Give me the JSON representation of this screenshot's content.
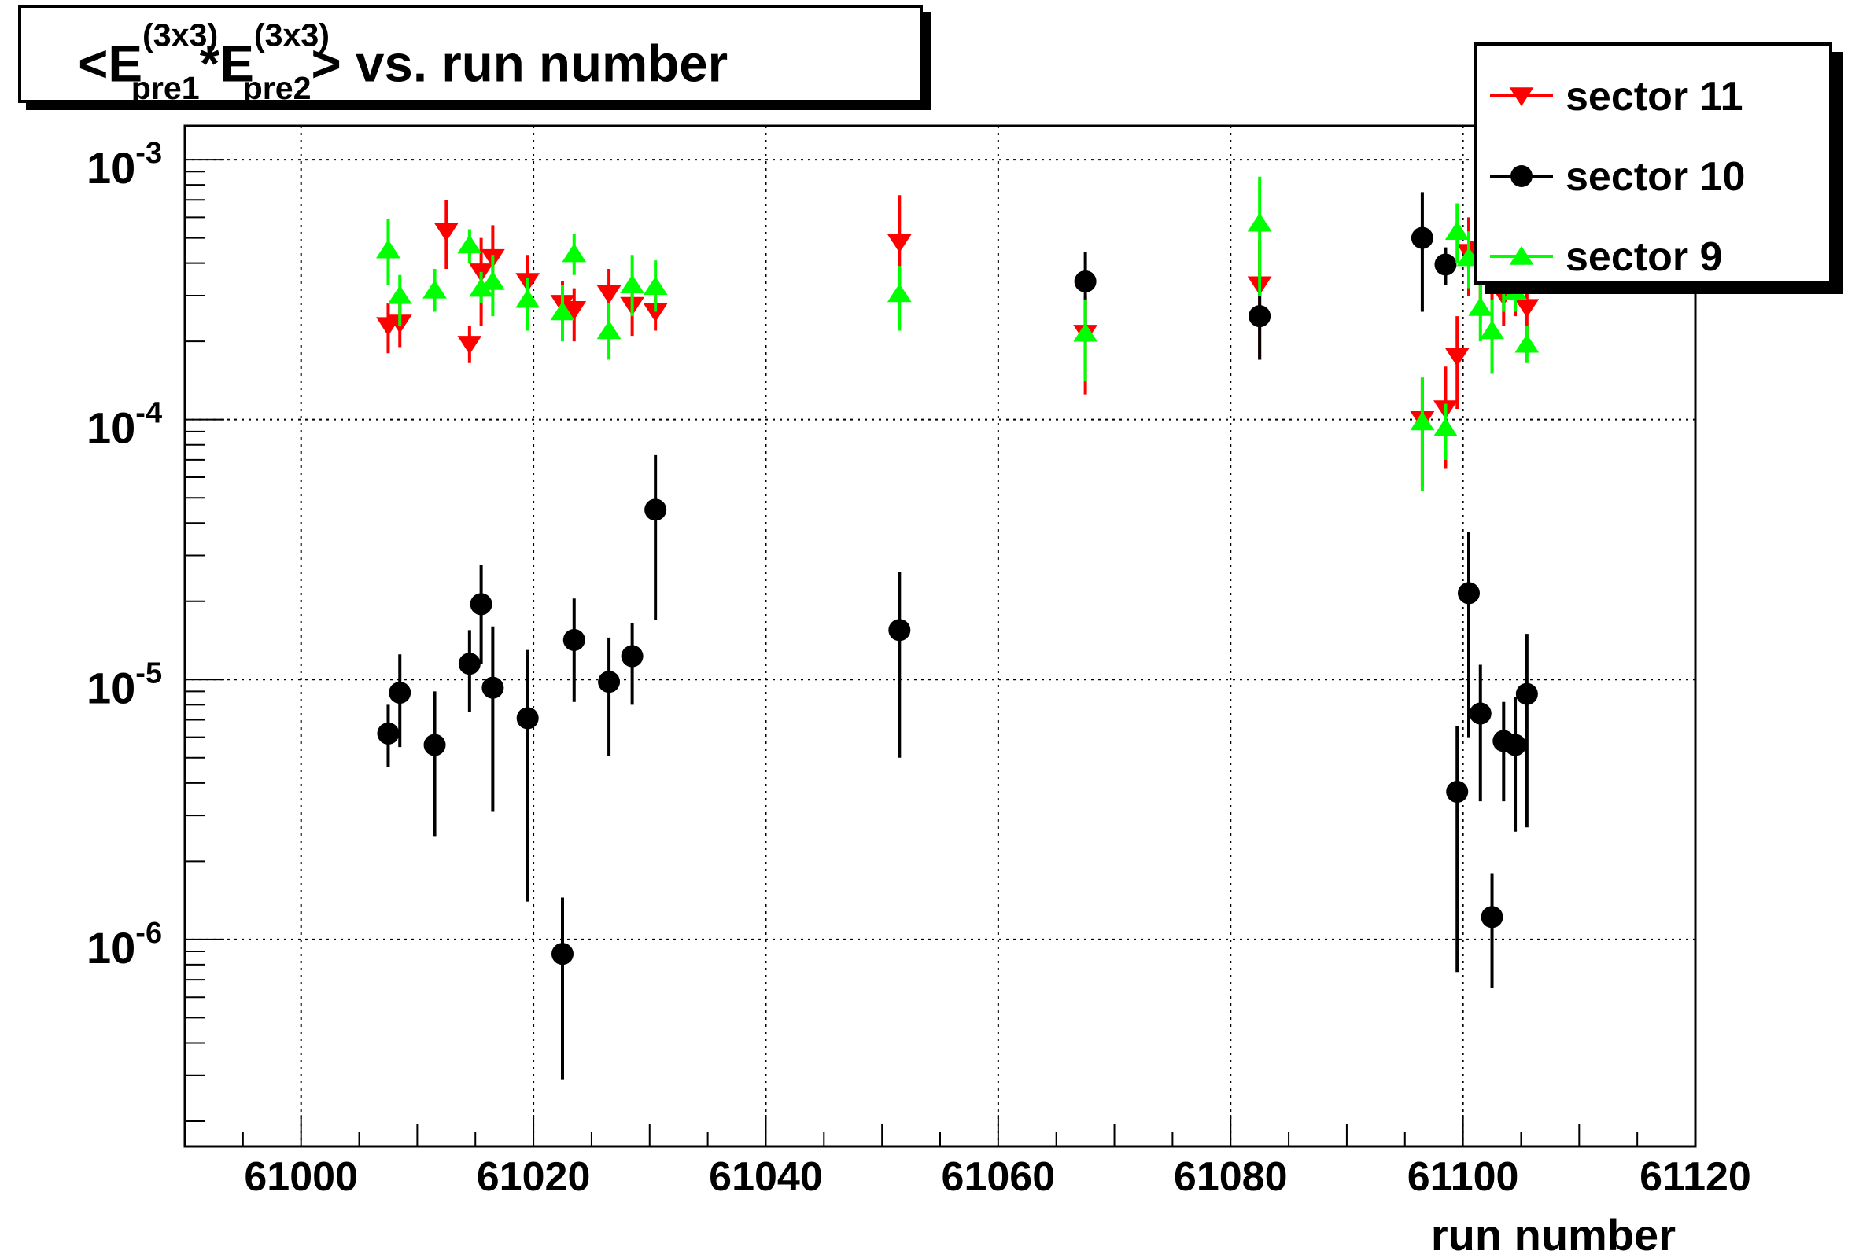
{
  "title": {
    "open": "<E",
    "sup1": "(3x3)",
    "sub1": "pre1",
    "mult": "*E",
    "sup2": "(3x3)",
    "sub2": "pre2",
    "close": "> vs. run number"
  },
  "legend": {
    "position": "top-right",
    "items": [
      {
        "label": "sector 11",
        "color": "#ff0000",
        "marker": "triangle-down"
      },
      {
        "label": "sector 10",
        "color": "#000000",
        "marker": "circle"
      },
      {
        "label": "sector 9",
        "color": "#00ff00",
        "marker": "triangle-up"
      }
    ]
  },
  "chart_data": {
    "type": "scatter",
    "title": "<E(3x3)pre1*E(3x3)pre2> vs. run number",
    "xlabel": "run number",
    "ylabel": "",
    "xlim": [
      60990,
      61120
    ],
    "ylim": [
      1.6e-07,
      0.00135
    ],
    "yscale": "log",
    "grid": true,
    "xticks": [
      61000,
      61020,
      61040,
      61060,
      61080,
      61100,
      61120
    ],
    "xtick_labels": [
      "61000",
      "61020",
      "61040",
      "61060",
      "61080",
      "61100",
      "61120"
    ],
    "yticks": [
      {
        "value": 0.001,
        "base": "10",
        "exp": "-3"
      },
      {
        "value": 0.0001,
        "base": "10",
        "exp": "-4"
      },
      {
        "value": 1e-05,
        "base": "10",
        "exp": "-5"
      },
      {
        "value": 1e-06,
        "base": "10",
        "exp": "-6"
      }
    ],
    "series": [
      {
        "name": "sector 11",
        "color": "#ff0000",
        "marker": "triangle-down",
        "points": [
          {
            "x": 61007.5,
            "y": 0.00023,
            "lo": 0.00018,
            "hi": 0.00028
          },
          {
            "x": 61008.5,
            "y": 0.000235,
            "lo": 0.00019,
            "hi": 0.00029
          },
          {
            "x": 61012.5,
            "y": 0.00053,
            "lo": 0.00038,
            "hi": 0.0007
          },
          {
            "x": 61014.5,
            "y": 0.000195,
            "lo": 0.000165,
            "hi": 0.00023
          },
          {
            "x": 61015.5,
            "y": 0.00037,
            "lo": 0.00023,
            "hi": 0.0005
          },
          {
            "x": 61016.5,
            "y": 0.00042,
            "lo": 0.0003,
            "hi": 0.00056
          },
          {
            "x": 61019.5,
            "y": 0.00034,
            "lo": 0.00026,
            "hi": 0.00043
          },
          {
            "x": 61022.5,
            "y": 0.00028,
            "lo": 0.00022,
            "hi": 0.00034
          },
          {
            "x": 61023.5,
            "y": 0.000265,
            "lo": 0.0002,
            "hi": 0.00032
          },
          {
            "x": 61026.5,
            "y": 0.000305,
            "lo": 0.00024,
            "hi": 0.00038
          },
          {
            "x": 61028.5,
            "y": 0.000275,
            "lo": 0.00021,
            "hi": 0.00035
          },
          {
            "x": 61030.5,
            "y": 0.00026,
            "lo": 0.00022,
            "hi": 0.0003
          },
          {
            "x": 61051.5,
            "y": 0.00048,
            "lo": 0.00033,
            "hi": 0.00073
          },
          {
            "x": 61067.5,
            "y": 0.000215,
            "lo": 0.000125,
            "hi": 0.0003
          },
          {
            "x": 61082.5,
            "y": 0.00033,
            "lo": 0.00017,
            "hi": 0.00049
          },
          {
            "x": 61096.5,
            "y": 0.0001,
            "lo": 5.5e-05,
            "hi": 0.000145
          },
          {
            "x": 61098.5,
            "y": 0.00011,
            "lo": 6.5e-05,
            "hi": 0.00016
          },
          {
            "x": 61099.5,
            "y": 0.000175,
            "lo": 0.00011,
            "hi": 0.00025
          },
          {
            "x": 61100.5,
            "y": 0.00044,
            "lo": 0.0003,
            "hi": 0.0006
          },
          {
            "x": 61101.5,
            "y": 0.00045,
            "lo": 0.00028,
            "hi": 0.00065
          },
          {
            "x": 61102.5,
            "y": 0.00033,
            "lo": 0.00022,
            "hi": 0.00045
          },
          {
            "x": 61103.5,
            "y": 0.0003,
            "lo": 0.00023,
            "hi": 0.00038
          },
          {
            "x": 61104.5,
            "y": 0.00031,
            "lo": 0.00025,
            "hi": 0.00037
          },
          {
            "x": 61105.5,
            "y": 0.00027,
            "lo": 0.0002,
            "hi": 0.00036
          }
        ]
      },
      {
        "name": "sector 10",
        "color": "#000000",
        "marker": "circle",
        "points": [
          {
            "x": 61007.5,
            "y": 6.2e-06,
            "lo": 4.6e-06,
            "hi": 8e-06
          },
          {
            "x": 61008.5,
            "y": 8.9e-06,
            "lo": 5.5e-06,
            "hi": 1.25e-05
          },
          {
            "x": 61011.5,
            "y": 5.6e-06,
            "lo": 2.5e-06,
            "hi": 9e-06
          },
          {
            "x": 61014.5,
            "y": 1.15e-05,
            "lo": 7.5e-06,
            "hi": 1.55e-05
          },
          {
            "x": 61015.5,
            "y": 1.95e-05,
            "lo": 1.15e-05,
            "hi": 2.75e-05
          },
          {
            "x": 61016.5,
            "y": 9.3e-06,
            "lo": 3.1e-06,
            "hi": 1.6e-05
          },
          {
            "x": 61019.5,
            "y": 7.1e-06,
            "lo": 1.4e-06,
            "hi": 1.3e-05
          },
          {
            "x": 61022.5,
            "y": 8.8e-07,
            "lo": 2.9e-07,
            "hi": 1.45e-06
          },
          {
            "x": 61023.5,
            "y": 1.42e-05,
            "lo": 8.2e-06,
            "hi": 2.05e-05
          },
          {
            "x": 61026.5,
            "y": 9.8e-06,
            "lo": 5.1e-06,
            "hi": 1.45e-05
          },
          {
            "x": 61028.5,
            "y": 1.23e-05,
            "lo": 8e-06,
            "hi": 1.65e-05
          },
          {
            "x": 61030.5,
            "y": 4.5e-05,
            "lo": 1.7e-05,
            "hi": 7.3e-05
          },
          {
            "x": 61051.5,
            "y": 1.55e-05,
            "lo": 5e-06,
            "hi": 2.6e-05
          },
          {
            "x": 61067.5,
            "y": 0.00034,
            "lo": 0.00023,
            "hi": 0.00044
          },
          {
            "x": 61082.5,
            "y": 0.00025,
            "lo": 0.00017,
            "hi": 0.00033
          },
          {
            "x": 61096.5,
            "y": 0.0005,
            "lo": 0.00026,
            "hi": 0.00075
          },
          {
            "x": 61098.5,
            "y": 0.000395,
            "lo": 0.00033,
            "hi": 0.00046
          },
          {
            "x": 61099.5,
            "y": 3.7e-06,
            "lo": 7.5e-07,
            "hi": 6.6e-06
          },
          {
            "x": 61100.5,
            "y": 2.15e-05,
            "lo": 6e-06,
            "hi": 3.7e-05
          },
          {
            "x": 61101.5,
            "y": 7.4e-06,
            "lo": 3.4e-06,
            "hi": 1.14e-05
          },
          {
            "x": 61102.5,
            "y": 1.22e-06,
            "lo": 6.5e-07,
            "hi": 1.8e-06
          },
          {
            "x": 61103.5,
            "y": 5.8e-06,
            "lo": 3.4e-06,
            "hi": 8.2e-06
          },
          {
            "x": 61104.5,
            "y": 5.6e-06,
            "lo": 2.6e-06,
            "hi": 8.6e-06
          },
          {
            "x": 61105.5,
            "y": 8.8e-06,
            "lo": 2.7e-06,
            "hi": 1.5e-05
          }
        ]
      },
      {
        "name": "sector 9",
        "color": "#00ff00",
        "marker": "triangle-up",
        "points": [
          {
            "x": 61007.5,
            "y": 0.00045,
            "lo": 0.00033,
            "hi": 0.00059
          },
          {
            "x": 61008.5,
            "y": 0.0003,
            "lo": 0.00023,
            "hi": 0.00036
          },
          {
            "x": 61011.5,
            "y": 0.000315,
            "lo": 0.00026,
            "hi": 0.00038
          },
          {
            "x": 61014.5,
            "y": 0.00047,
            "lo": 0.0004,
            "hi": 0.00054
          },
          {
            "x": 61015.5,
            "y": 0.00032,
            "lo": 0.00028,
            "hi": 0.00037
          },
          {
            "x": 61016.5,
            "y": 0.00034,
            "lo": 0.00025,
            "hi": 0.00043
          },
          {
            "x": 61019.5,
            "y": 0.00029,
            "lo": 0.00022,
            "hi": 0.00035
          },
          {
            "x": 61022.5,
            "y": 0.00026,
            "lo": 0.0002,
            "hi": 0.00033
          },
          {
            "x": 61023.5,
            "y": 0.000435,
            "lo": 0.00036,
            "hi": 0.00052
          },
          {
            "x": 61026.5,
            "y": 0.00022,
            "lo": 0.00017,
            "hi": 0.00028
          },
          {
            "x": 61028.5,
            "y": 0.00033,
            "lo": 0.00025,
            "hi": 0.00043
          },
          {
            "x": 61030.5,
            "y": 0.000325,
            "lo": 0.00026,
            "hi": 0.00041
          },
          {
            "x": 61051.5,
            "y": 0.000305,
            "lo": 0.00022,
            "hi": 0.00039
          },
          {
            "x": 61067.5,
            "y": 0.000215,
            "lo": 0.00014,
            "hi": 0.00029
          },
          {
            "x": 61082.5,
            "y": 0.00057,
            "lo": 0.0003,
            "hi": 0.00086
          },
          {
            "x": 61096.5,
            "y": 9.8e-05,
            "lo": 5.3e-05,
            "hi": 0.000145
          },
          {
            "x": 61098.5,
            "y": 9.3e-05,
            "lo": 7e-05,
            "hi": 0.000115
          },
          {
            "x": 61099.5,
            "y": 0.00053,
            "lo": 0.0004,
            "hi": 0.00068
          },
          {
            "x": 61100.5,
            "y": 0.00042,
            "lo": 0.00032,
            "hi": 0.00053
          },
          {
            "x": 61101.5,
            "y": 0.00027,
            "lo": 0.0002,
            "hi": 0.00034
          },
          {
            "x": 61102.5,
            "y": 0.00022,
            "lo": 0.00015,
            "hi": 0.00029
          },
          {
            "x": 61103.5,
            "y": 0.00033,
            "lo": 0.00026,
            "hi": 0.0004
          },
          {
            "x": 61104.5,
            "y": 0.00031,
            "lo": 0.00026,
            "hi": 0.00036
          },
          {
            "x": 61105.5,
            "y": 0.000195,
            "lo": 0.000165,
            "hi": 0.00023
          }
        ]
      }
    ]
  }
}
